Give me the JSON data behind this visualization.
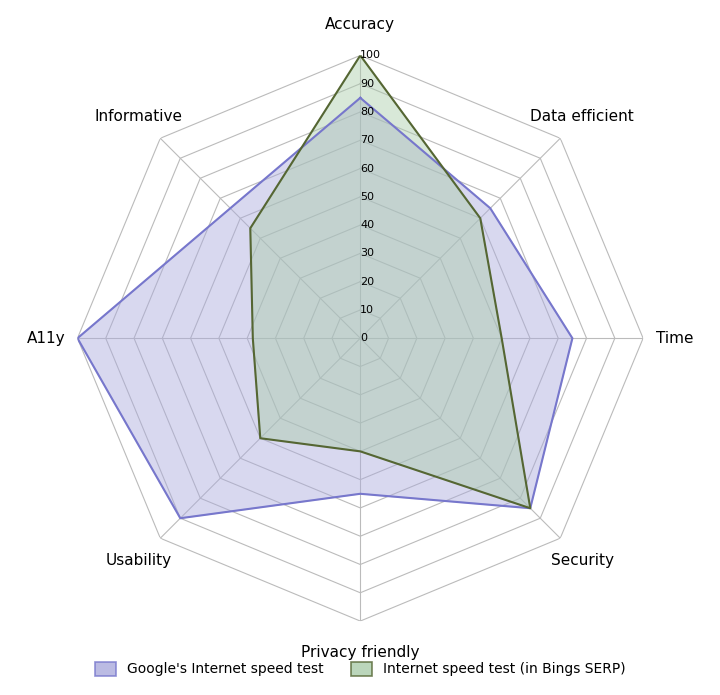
{
  "categories": [
    "Accuracy",
    "Data efficient",
    "Time",
    "Security",
    "Privacy friendly",
    "Usability",
    "A11y",
    "Informative"
  ],
  "google_values": [
    85,
    65,
    75,
    85,
    55,
    90,
    100,
    65
  ],
  "bing_values": [
    100,
    60,
    50,
    85,
    40,
    50,
    38,
    55
  ],
  "google_line_color": "#7777cc",
  "google_fill_color": "#aaaadd",
  "bing_line_color": "#556633",
  "bing_fill_color": "#aaccaa",
  "google_label": "Google's Internet speed test",
  "bing_label": "Internet speed test (in Bings SERP)",
  "radial_min": 0,
  "radial_max": 100,
  "radial_ticks": [
    0,
    10,
    20,
    30,
    40,
    50,
    60,
    70,
    80,
    90,
    100
  ],
  "grid_color": "#bbbbbb",
  "background_color": "#ffffff",
  "label_fontsize": 11
}
